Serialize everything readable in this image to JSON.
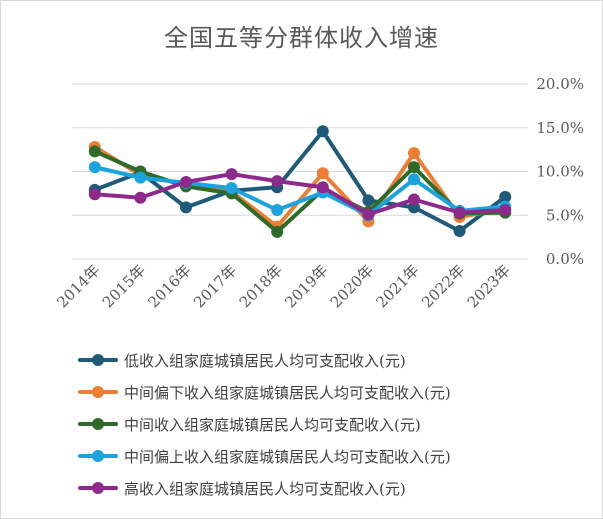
{
  "chart_data": {
    "type": "line",
    "title": "全国五等分群体收入增速",
    "categories": [
      "2014年",
      "2015年",
      "2016年",
      "2017年",
      "2018年",
      "2019年",
      "2020年",
      "2021年",
      "2022年",
      "2023年"
    ],
    "y_ticks": [
      "0.0%",
      "5.0%",
      "10.0%",
      "15.0%",
      "20.0%"
    ],
    "ylim": [
      0,
      20
    ],
    "y_axis_side": "right",
    "grid": true,
    "legend_position": "bottom",
    "series": [
      {
        "name": "低收入组家庭城镇居民人均可支配收入(元)",
        "color": "#1f5a78",
        "values": [
          7.9,
          9.9,
          5.9,
          7.8,
          8.2,
          14.6,
          6.7,
          5.9,
          3.2,
          7.1
        ]
      },
      {
        "name": "中间偏下收入组家庭城镇居民人均可支配收入(元)",
        "color": "#ed7d31",
        "values": [
          12.8,
          9.6,
          8.5,
          7.7,
          3.7,
          9.8,
          4.3,
          12.1,
          4.8,
          5.7
        ]
      },
      {
        "name": "中间收入组家庭城镇居民人均可支配收入(元)",
        "color": "#2e6b2a",
        "values": [
          12.3,
          10.0,
          8.3,
          7.5,
          3.1,
          7.9,
          5.4,
          10.5,
          5.2,
          5.3
        ]
      },
      {
        "name": "中间偏上收入组家庭城镇居民人均可支配收入(元)",
        "color": "#1aa3dc",
        "values": [
          10.5,
          9.3,
          8.7,
          8.1,
          5.6,
          7.6,
          5.0,
          9.1,
          5.5,
          6.0
        ]
      },
      {
        "name": "高收入组家庭城镇居民人均可支配收入(元)",
        "color": "#8e2a8c",
        "values": [
          7.4,
          7.0,
          8.8,
          9.7,
          8.9,
          8.2,
          5.1,
          6.8,
          5.3,
          5.6
        ]
      }
    ]
  }
}
